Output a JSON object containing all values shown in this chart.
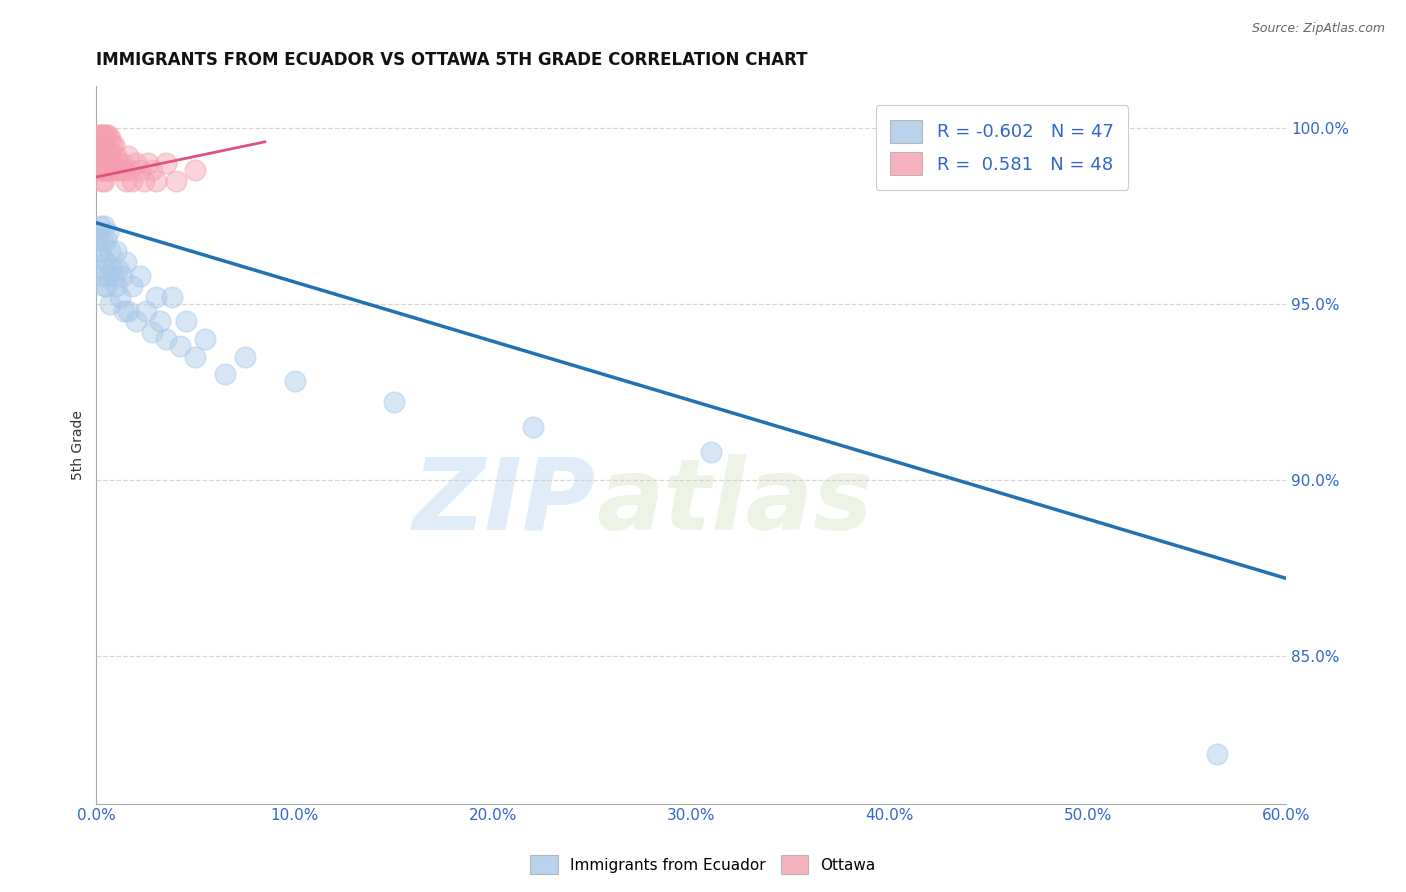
{
  "title": "IMMIGRANTS FROM ECUADOR VS OTTAWA 5TH GRADE CORRELATION CHART",
  "source": "Source: ZipAtlas.com",
  "ylabel": "5th Grade",
  "legend_labels": [
    "Immigrants from Ecuador",
    "Ottawa"
  ],
  "blue_R": -0.602,
  "blue_N": 47,
  "pink_R": 0.581,
  "pink_N": 48,
  "blue_color": "#a8c8e8",
  "pink_color": "#f4a0b0",
  "blue_line_color": "#2171b5",
  "pink_line_color": "#e05080",
  "watermark_zip": "ZIP",
  "watermark_atlas": "atlas",
  "xlim": [
    0.0,
    0.6
  ],
  "ylim": [
    0.808,
    1.012
  ],
  "yticks": [
    0.85,
    0.9,
    0.95,
    1.0
  ],
  "xticks": [
    0.0,
    0.1,
    0.2,
    0.3,
    0.4,
    0.5,
    0.6
  ],
  "blue_x": [
    0.001,
    0.001,
    0.002,
    0.002,
    0.003,
    0.003,
    0.003,
    0.004,
    0.004,
    0.004,
    0.005,
    0.005,
    0.005,
    0.006,
    0.006,
    0.007,
    0.007,
    0.008,
    0.009,
    0.01,
    0.01,
    0.011,
    0.012,
    0.013,
    0.014,
    0.015,
    0.016,
    0.018,
    0.02,
    0.022,
    0.025,
    0.028,
    0.03,
    0.032,
    0.035,
    0.038,
    0.042,
    0.045,
    0.05,
    0.055,
    0.065,
    0.075,
    0.1,
    0.15,
    0.22,
    0.31,
    0.565
  ],
  "blue_y": [
    0.97,
    0.968,
    0.972,
    0.965,
    0.968,
    0.963,
    0.958,
    0.972,
    0.96,
    0.955,
    0.968,
    0.962,
    0.955,
    0.97,
    0.958,
    0.965,
    0.95,
    0.96,
    0.958,
    0.965,
    0.955,
    0.96,
    0.952,
    0.958,
    0.948,
    0.962,
    0.948,
    0.955,
    0.945,
    0.958,
    0.948,
    0.942,
    0.952,
    0.945,
    0.94,
    0.952,
    0.938,
    0.945,
    0.935,
    0.94,
    0.93,
    0.935,
    0.928,
    0.922,
    0.915,
    0.908,
    0.822
  ],
  "pink_x": [
    0.001,
    0.001,
    0.001,
    0.002,
    0.002,
    0.002,
    0.002,
    0.003,
    0.003,
    0.003,
    0.003,
    0.003,
    0.004,
    0.004,
    0.004,
    0.004,
    0.005,
    0.005,
    0.005,
    0.006,
    0.006,
    0.006,
    0.007,
    0.007,
    0.007,
    0.008,
    0.008,
    0.009,
    0.009,
    0.01,
    0.01,
    0.011,
    0.012,
    0.013,
    0.014,
    0.015,
    0.016,
    0.017,
    0.018,
    0.02,
    0.022,
    0.024,
    0.026,
    0.028,
    0.03,
    0.035,
    0.04,
    0.05
  ],
  "pink_y": [
    0.998,
    0.995,
    0.992,
    0.998,
    0.995,
    0.992,
    0.988,
    0.998,
    0.995,
    0.992,
    0.988,
    0.985,
    0.998,
    0.995,
    0.99,
    0.985,
    0.998,
    0.993,
    0.988,
    0.998,
    0.993,
    0.988,
    0.997,
    0.993,
    0.988,
    0.995,
    0.99,
    0.995,
    0.99,
    0.992,
    0.988,
    0.99,
    0.988,
    0.99,
    0.988,
    0.985,
    0.992,
    0.988,
    0.985,
    0.99,
    0.988,
    0.985,
    0.99,
    0.988,
    0.985,
    0.99,
    0.985,
    0.988
  ],
  "blue_trend_x": [
    0.0,
    0.6
  ],
  "blue_trend_y": [
    0.973,
    0.872
  ],
  "pink_trend_x": [
    0.0,
    0.085
  ],
  "pink_trend_y": [
    0.986,
    0.996
  ]
}
